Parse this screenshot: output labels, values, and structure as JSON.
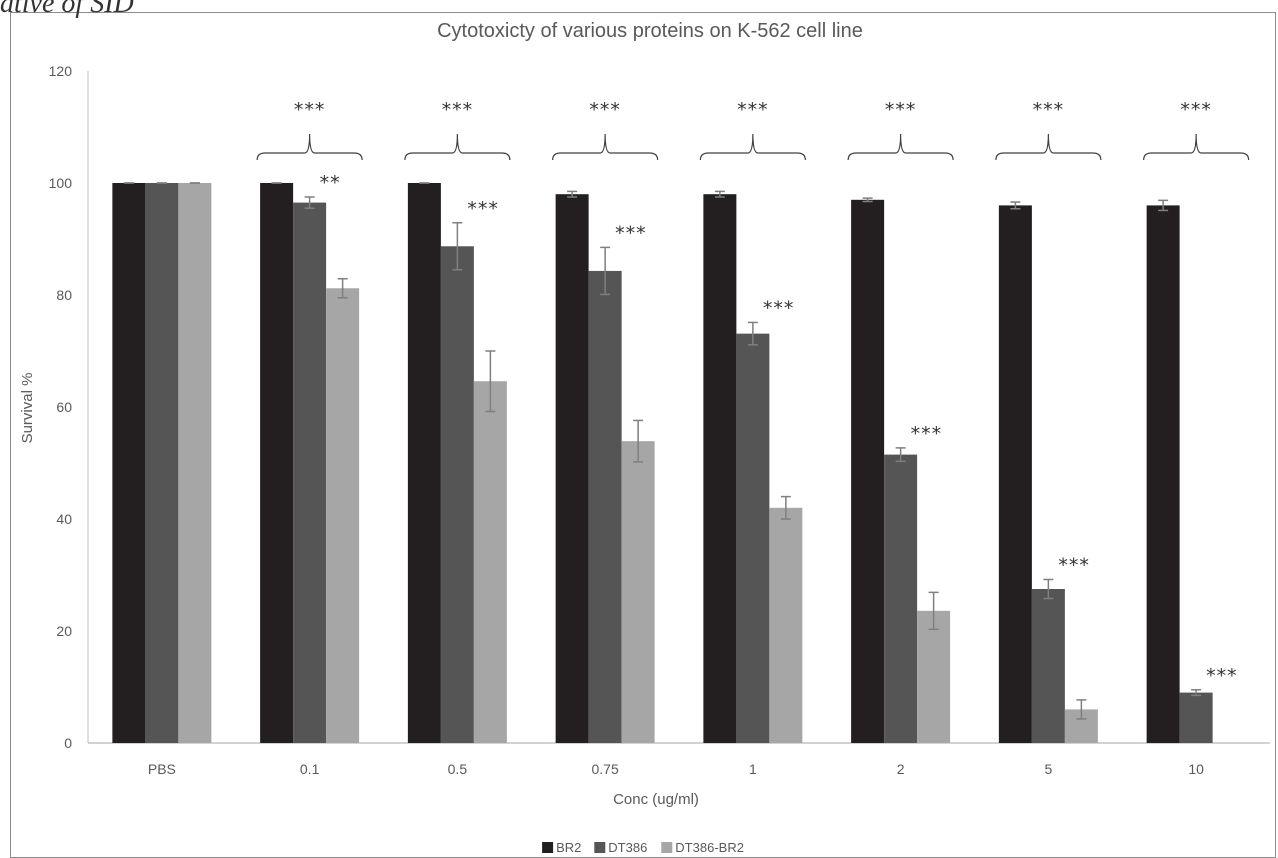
{
  "corner_text": "ative of SID",
  "chart_data": {
    "type": "bar",
    "title": "Cytotoxicty of various proteins on K-562 cell line",
    "xlabel": "Conc (ug/ml)",
    "ylabel": "Survival %",
    "ylim": [
      0,
      120
    ],
    "yticks": [
      0,
      20,
      40,
      60,
      80,
      100,
      120
    ],
    "grid": false,
    "legend_position": "bottom",
    "categories": [
      "PBS",
      "0.1",
      "0.5",
      "0.75",
      "1",
      "2",
      "5",
      "10"
    ],
    "series": [
      {
        "name": "BR2",
        "color": "#231f20",
        "values": [
          100,
          100,
          100,
          98,
          98,
          97,
          96,
          96
        ],
        "errors": [
          0,
          0,
          0,
          0.5,
          0.5,
          0.3,
          0.6,
          0.9
        ]
      },
      {
        "name": "DT386",
        "color": "#555555",
        "values": [
          100,
          96.5,
          88.7,
          84.3,
          73.1,
          51.5,
          27.5,
          9.0
        ],
        "errors": [
          0,
          1.0,
          4.2,
          4.2,
          2.0,
          1.2,
          1.7,
          0.5
        ]
      },
      {
        "name": "DT386-BR2",
        "color": "#a6a6a6",
        "values": [
          100,
          81.2,
          64.6,
          53.9,
          42.0,
          23.6,
          6.0,
          null
        ],
        "errors": [
          0,
          1.7,
          5.4,
          3.7,
          2.0,
          3.3,
          1.7,
          0
        ]
      }
    ],
    "annotations": {
      "group_brace_label": "***",
      "group_brace_categories": [
        "0.1",
        "0.5",
        "0.75",
        "1",
        "2",
        "5",
        "10"
      ],
      "bar_labels": [
        {
          "category": "0.1",
          "series": "DT386",
          "text": "**"
        },
        {
          "category": "0.5",
          "series": "DT386",
          "text": "***"
        },
        {
          "category": "0.75",
          "series": "DT386",
          "text": "***"
        },
        {
          "category": "1",
          "series": "DT386",
          "text": "***"
        },
        {
          "category": "2",
          "series": "DT386",
          "text": "***"
        },
        {
          "category": "5",
          "series": "DT386",
          "text": "***"
        },
        {
          "category": "10",
          "series": "DT386",
          "text": "***"
        }
      ]
    }
  }
}
